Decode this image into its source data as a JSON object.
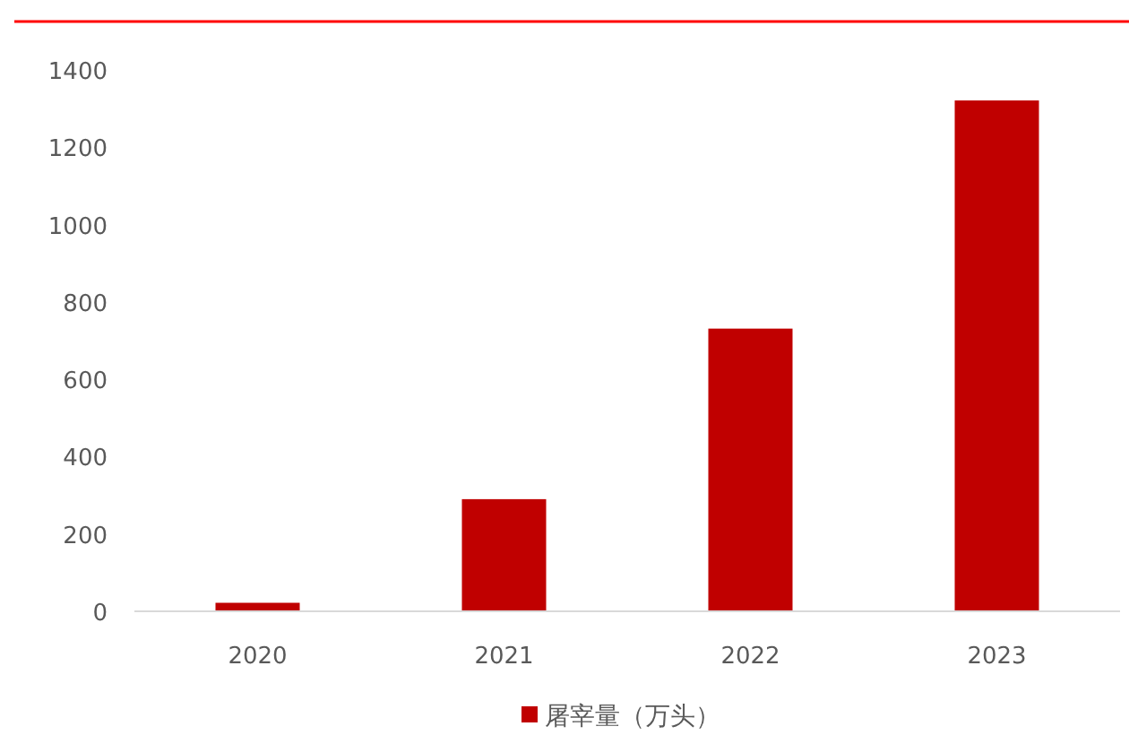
{
  "chart_data": {
    "type": "bar",
    "categories": [
      "2020",
      "2021",
      "2022",
      "2023"
    ],
    "series": [
      {
        "name": "屠宰量（万头）",
        "color": "#c00000",
        "values": [
          22,
          290,
          731,
          1321
        ]
      }
    ],
    "ylim": [
      0,
      1400
    ],
    "yticks": [
      0,
      200,
      400,
      600,
      800,
      1000,
      1200,
      1400
    ],
    "grid": false,
    "legend": "bottom"
  }
}
